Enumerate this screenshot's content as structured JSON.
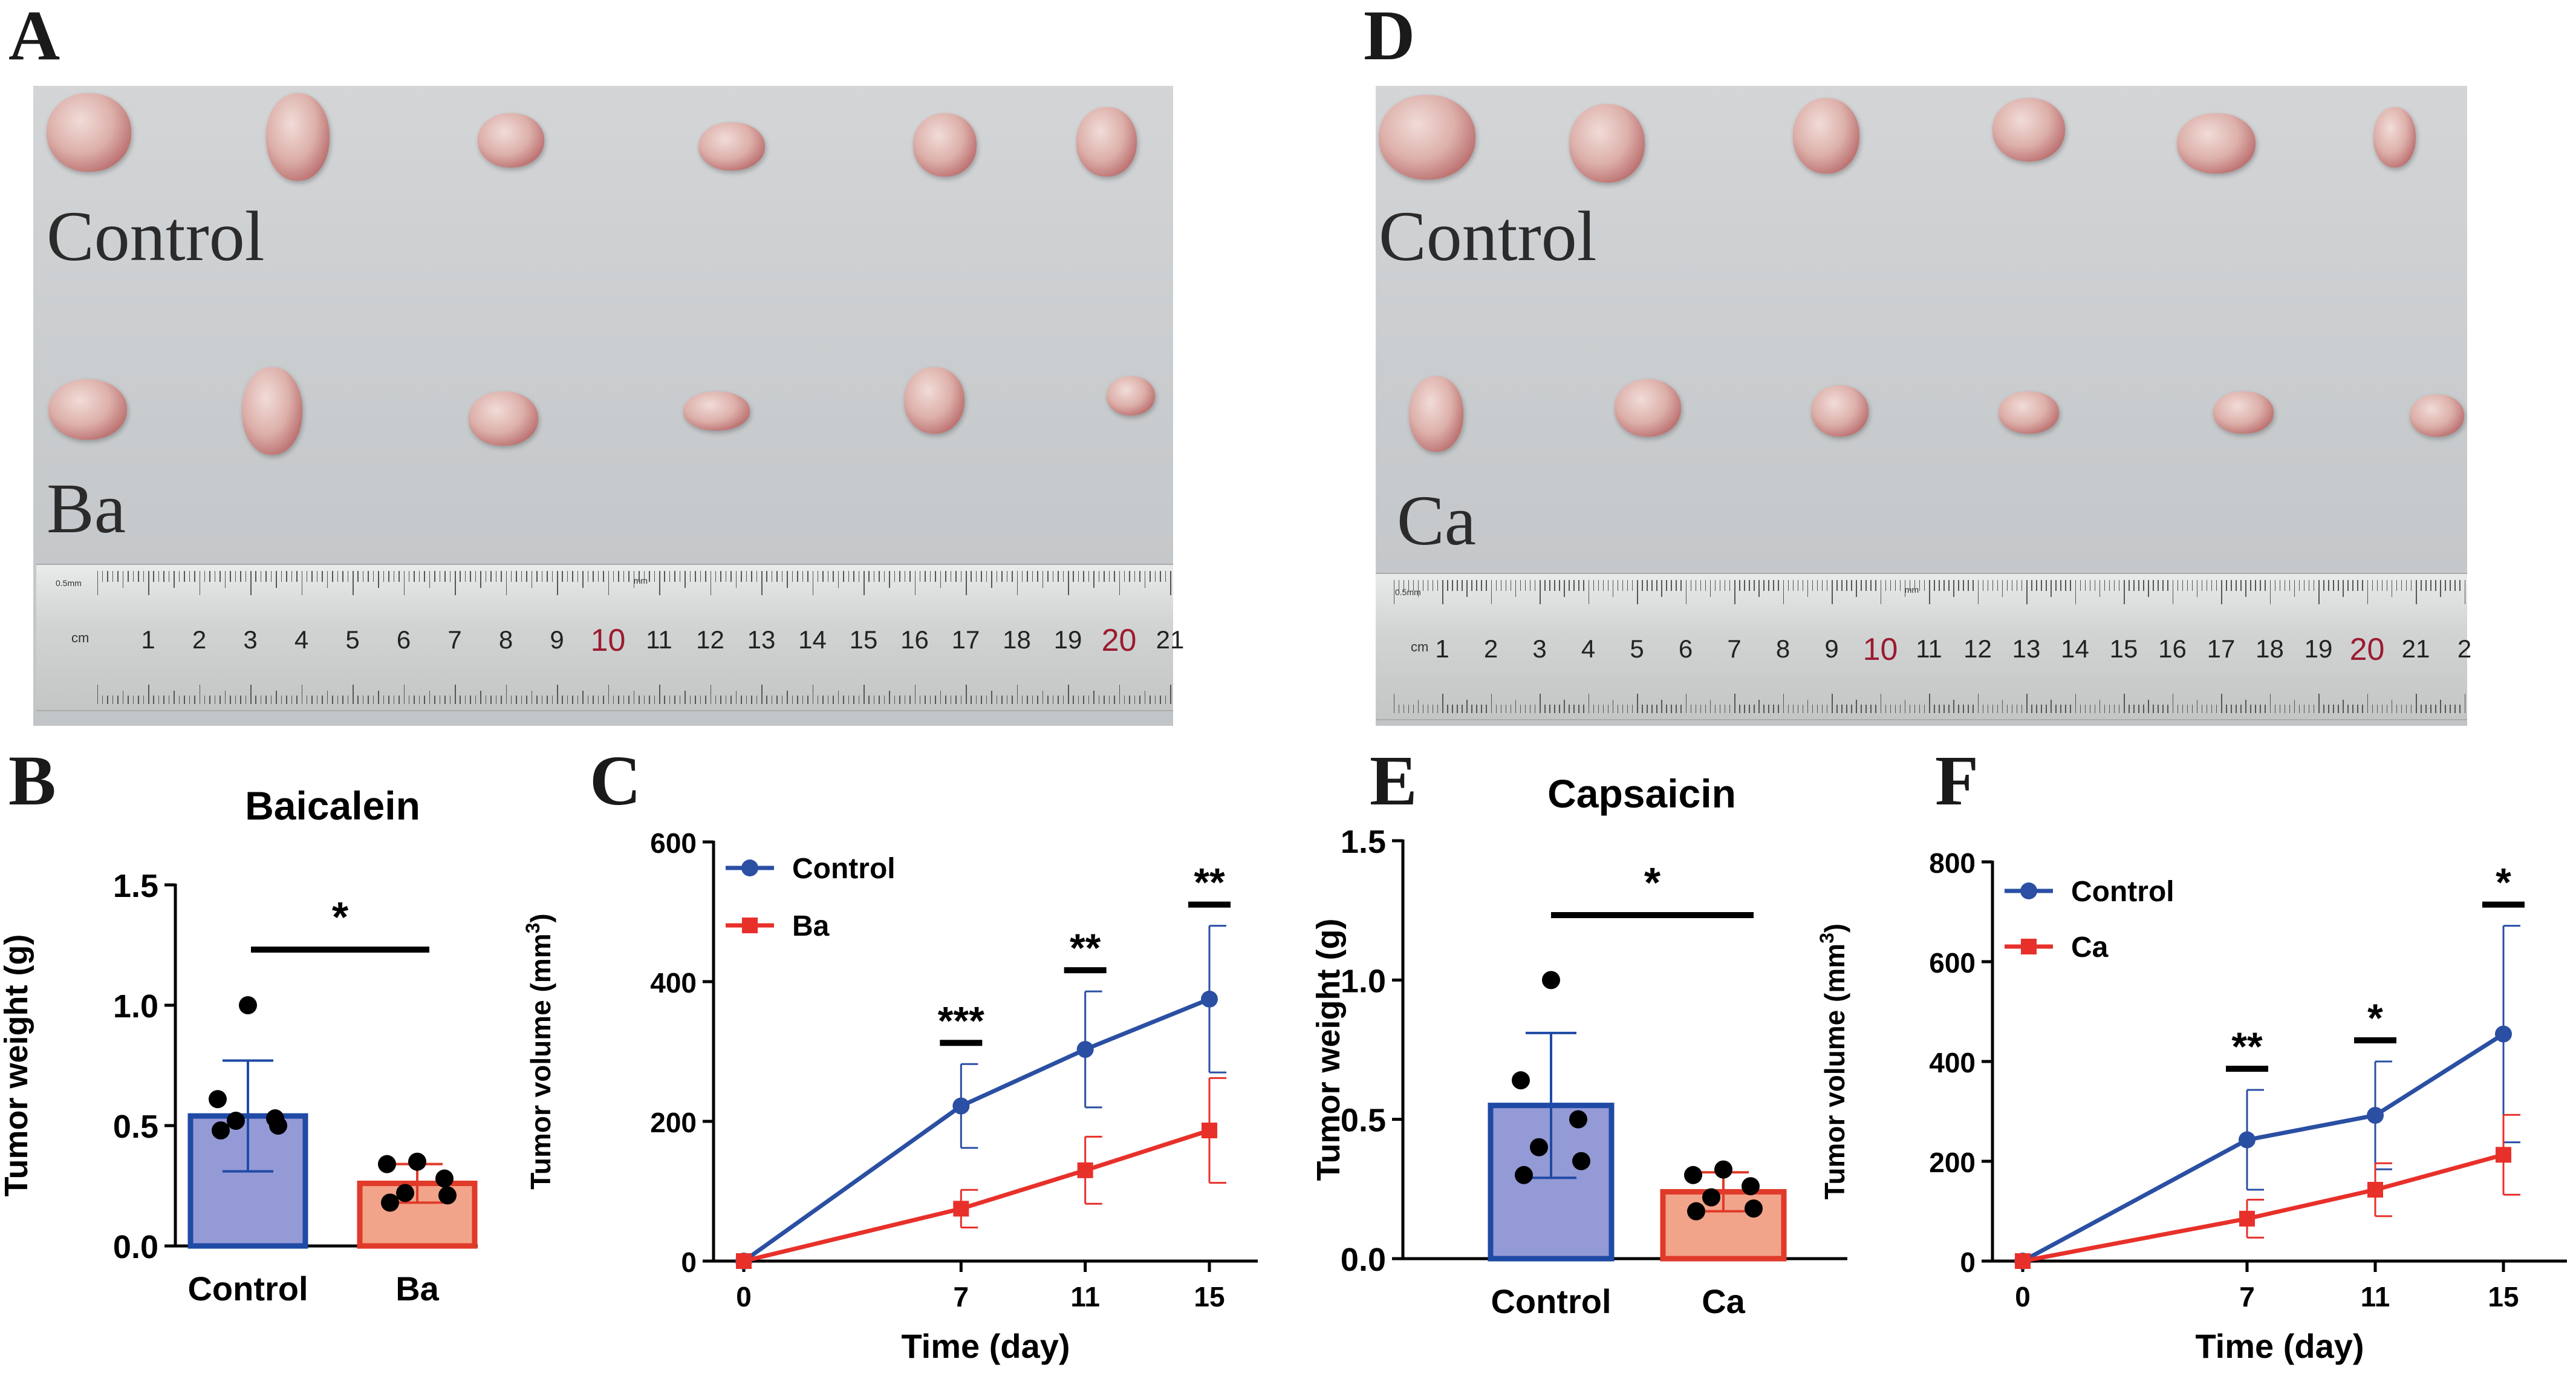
{
  "panels": {
    "A": {
      "label": "A",
      "top_group": "Control",
      "bottom_group": "Ba"
    },
    "D": {
      "label": "D",
      "top_group": "Control",
      "bottom_group": "Ca"
    },
    "B": {
      "label": "B"
    },
    "C": {
      "label": "C"
    },
    "E": {
      "label": "E"
    },
    "F": {
      "label": "F"
    }
  },
  "ruler": {
    "unit": "cm",
    "small_label": "0.5mm",
    "mm_label": "mm",
    "numbers_A": [
      "1",
      "2",
      "3",
      "4",
      "5",
      "6",
      "7",
      "8",
      "9",
      "10",
      "11",
      "12",
      "13",
      "14",
      "15",
      "16",
      "17",
      "18",
      "19",
      "20",
      "21"
    ],
    "numbers_D": [
      "1",
      "2",
      "3",
      "4",
      "5",
      "6",
      "7",
      "8",
      "9",
      "10",
      "11",
      "12",
      "13",
      "14",
      "15",
      "16",
      "17",
      "18",
      "19",
      "20",
      "21",
      "2"
    ],
    "red_numbers": [
      "10",
      "20"
    ]
  },
  "colors": {
    "control_line": "#2a4fa3",
    "treat_line": "#e8302a",
    "control_bar": "#949ad6",
    "control_bar_border": "#1f4aa5",
    "treat_bar": "#f2a48a",
    "treat_bar_border": "#e03a2a",
    "axis": "#000000"
  },
  "chart_data": [
    {
      "id": "B",
      "type": "bar",
      "title": "Baicalein",
      "ylabel": "Tumor weight (g)",
      "xlabel": "",
      "categories": [
        "Control",
        "Ba"
      ],
      "values": [
        0.54,
        0.26
      ],
      "sd": [
        0.23,
        0.08
      ],
      "points": [
        [
          1.0,
          0.61,
          0.53,
          0.52,
          0.5,
          0.48
        ],
        [
          0.35,
          0.34,
          0.28,
          0.22,
          0.21,
          0.18
        ]
      ],
      "ylim": [
        0,
        1.5
      ],
      "yticks": [
        "0.0",
        "0.5",
        "1.0",
        "1.5"
      ],
      "significance": "*"
    },
    {
      "id": "C",
      "type": "line",
      "ylabel": "Tumor volume (mm",
      "ylabel_sup": "3",
      "ylabel_end": ")",
      "xlabel": "Time (day)",
      "x": [
        0,
        7,
        11,
        15
      ],
      "xticks": [
        "0",
        "7",
        "11",
        "15"
      ],
      "ylim": [
        0,
        600
      ],
      "yticks": [
        "0",
        "200",
        "400",
        "600"
      ],
      "series": [
        {
          "name": "Control",
          "values": [
            0,
            222,
            303,
            375
          ],
          "err": [
            0,
            60,
            83,
            105
          ]
        },
        {
          "name": "Ba",
          "values": [
            0,
            75,
            130,
            187
          ],
          "err": [
            0,
            27,
            48,
            75
          ]
        }
      ],
      "significance": [
        "",
        "***",
        "**",
        "**"
      ],
      "legend": "top-left"
    },
    {
      "id": "E",
      "type": "bar",
      "title": "Capsaicin",
      "ylabel": "Tumor weight (g)",
      "xlabel": "",
      "categories": [
        "Control",
        "Ca"
      ],
      "values": [
        0.55,
        0.24
      ],
      "sd": [
        0.26,
        0.07
      ],
      "points": [
        [
          1.0,
          0.64,
          0.5,
          0.4,
          0.35,
          0.3
        ],
        [
          0.32,
          0.3,
          0.26,
          0.22,
          0.18,
          0.17
        ]
      ],
      "ylim": [
        0,
        1.5
      ],
      "yticks": [
        "0.0",
        "0.5",
        "1.0",
        "1.5"
      ],
      "significance": "*"
    },
    {
      "id": "F",
      "type": "line",
      "ylabel": "Tumor volume (mm",
      "ylabel_sup": "3",
      "ylabel_end": ")",
      "xlabel": "Time (day)",
      "x": [
        0,
        7,
        11,
        15
      ],
      "xticks": [
        "0",
        "7",
        "11",
        "15"
      ],
      "ylim": [
        0,
        800
      ],
      "yticks": [
        "0",
        "200",
        "400",
        "600",
        "800"
      ],
      "series": [
        {
          "name": "Control",
          "values": [
            0,
            243,
            292,
            455
          ],
          "err": [
            0,
            100,
            108,
            217
          ]
        },
        {
          "name": "Ca",
          "values": [
            0,
            85,
            143,
            213
          ],
          "err": [
            0,
            38,
            53,
            80
          ]
        }
      ],
      "significance": [
        "",
        "**",
        "*",
        "*"
      ],
      "legend": "top-left"
    }
  ]
}
